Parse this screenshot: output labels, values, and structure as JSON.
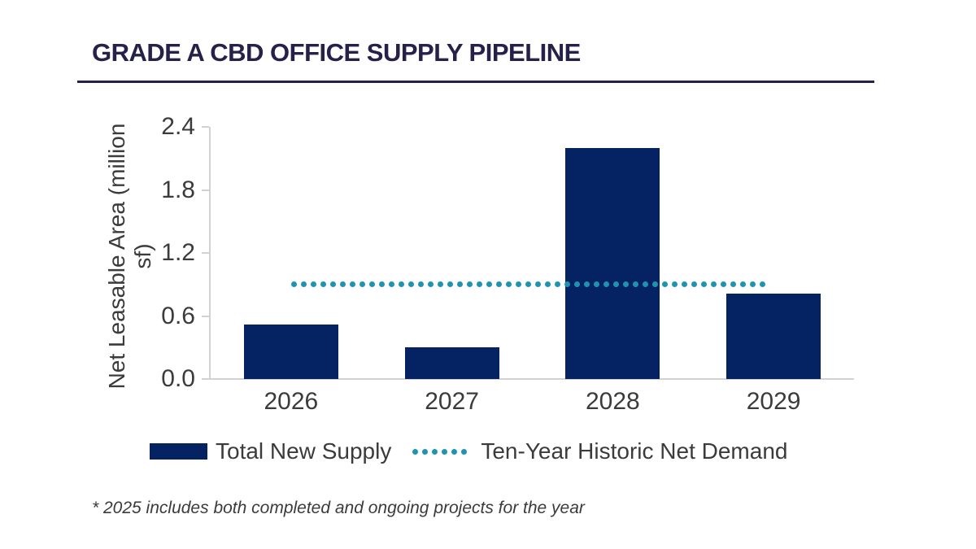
{
  "title": "GRADE A CBD OFFICE SUPPLY PIPELINE",
  "chart_data": {
    "type": "bar",
    "title": "GRADE A CBD OFFICE SUPPLY PIPELINE",
    "categories": [
      "2026",
      "2027",
      "2028",
      "2029"
    ],
    "series": [
      {
        "name": "Total New Supply",
        "type": "bar",
        "values": [
          0.52,
          0.3,
          2.2,
          0.81
        ]
      },
      {
        "name": "Ten-Year Historic Net Demand",
        "type": "dotted_reference_line",
        "value": 0.9
      }
    ],
    "ylabel": "Net Leasable Area (million sf)",
    "ylabel_lines": [
      "Net Leasable Area (million",
      "sf)"
    ],
    "yticks": [
      "0.0",
      "0.6",
      "1.2",
      "1.8",
      "2.4"
    ],
    "ylim": [
      0,
      2.4
    ],
    "grid": "off",
    "legend_position": "bottom"
  },
  "legend": {
    "items": [
      {
        "label": "Total New Supply",
        "swatch": "solid-bar"
      },
      {
        "label": "Ten-Year Historic Net Demand",
        "swatch": "dotted-line"
      }
    ]
  },
  "footnote": "* 2025 includes both completed and ongoing projects for the year",
  "colors": {
    "bar": "#052263",
    "dotted_line": "#2093b0",
    "title": "#262149",
    "rule": "#262149",
    "axis_text": "#3b3b3b",
    "axis_line": "#d2d2d2"
  }
}
